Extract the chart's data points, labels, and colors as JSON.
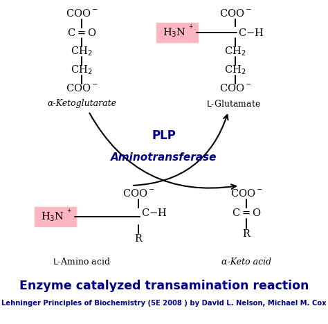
{
  "background_color": "#ffffff",
  "title": "Enzyme catalyzed transamination reaction",
  "subtitle": "Lehninger Principles of Biochemistry (5E 2008 ) by David L. Nelson, Michael M. Cox",
  "title_color": "#00008B",
  "subtitle_color": "#00008B",
  "title_fontsize": 12.5,
  "subtitle_fontsize": 7.2,
  "pink_box_color": "#FFB6C1",
  "chem_color": "#000000",
  "enzyme_color": "#00008B",
  "top_left_label": "α-Ketoglutarate",
  "top_right_label": "L-Glutamate",
  "bottom_left_label": "L-Amino acid",
  "bottom_right_label": "α-Keto acid",
  "plp_label": "PLP",
  "enzyme_label": "Aminotransferase"
}
